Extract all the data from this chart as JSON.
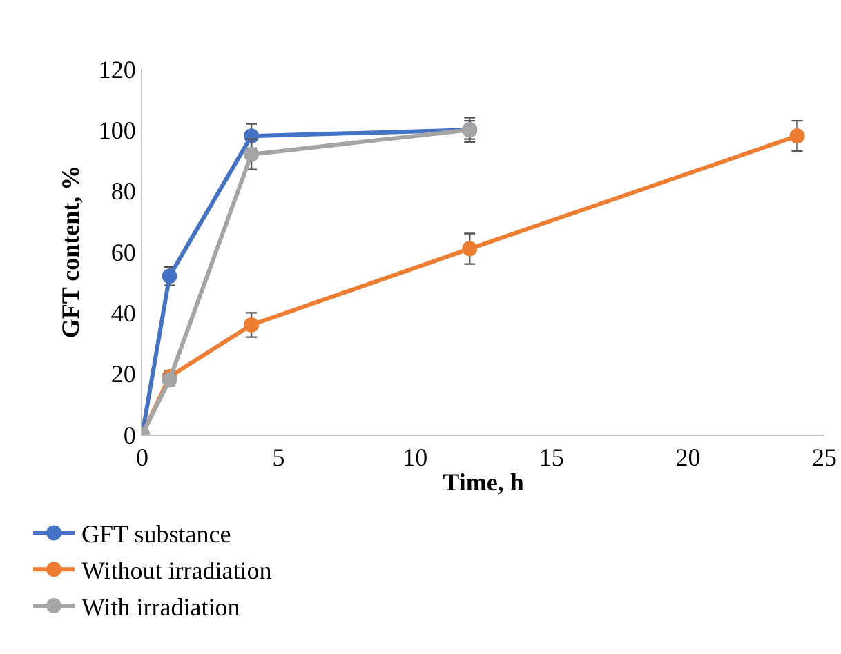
{
  "chart_data": {
    "type": "line",
    "xlabel": "Time, h",
    "ylabel": "GFT content, %",
    "xlim": [
      0,
      25
    ],
    "xticks": [
      0,
      5,
      10,
      15,
      20,
      25
    ],
    "ylim": [
      0,
      120
    ],
    "yticks": [
      0,
      20,
      40,
      60,
      80,
      100,
      120
    ],
    "grid": false,
    "legend": "bottom",
    "marker": "circle",
    "line_style": "solid",
    "series": [
      {
        "name": "GFT substance",
        "color": "#4472c4",
        "x": [
          0,
          1,
          4,
          12
        ],
        "values": [
          0,
          52,
          98,
          100
        ],
        "errors": [
          null,
          3,
          4,
          4
        ]
      },
      {
        "name": "Without irradiation",
        "color": "#ed7d31",
        "x": [
          0,
          1,
          4,
          12,
          24
        ],
        "values": [
          0,
          19,
          36,
          61,
          98
        ],
        "errors": [
          null,
          2,
          4,
          5,
          5
        ]
      },
      {
        "name": "With irradiation",
        "color": "#a5a5a5",
        "x": [
          0,
          1,
          4,
          12
        ],
        "values": [
          0,
          18,
          92,
          100
        ],
        "errors": [
          null,
          2,
          5,
          3
        ]
      }
    ]
  }
}
